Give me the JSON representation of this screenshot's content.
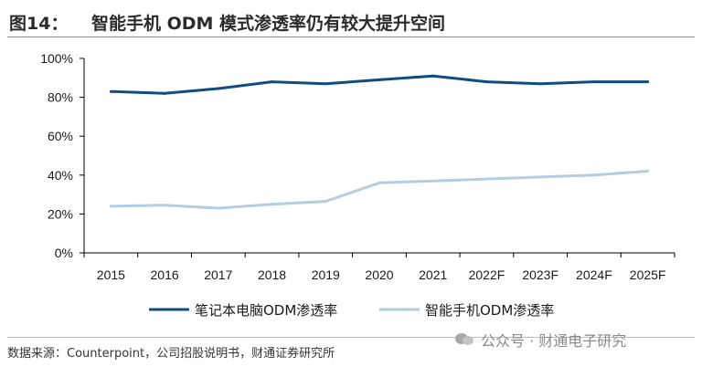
{
  "header": {
    "figure_label": "图14：",
    "title": "智能手机 ODM 模式渗透率仍有较大提升空间"
  },
  "footer": {
    "source": "数据来源：Counterpoint，公司招股说明书，财通证券研究所",
    "watermark": "公众号 · 财通电子研究"
  },
  "colors": {
    "notebook": "#0f4c81",
    "smartphone": "#b3cde3",
    "axis": "#000000"
  },
  "chart_data": {
    "type": "line",
    "title": "智能手机 ODM 模式渗透率仍有较大提升空间",
    "categories": [
      "2015",
      "2016",
      "2017",
      "2018",
      "2019",
      "2020",
      "2021",
      "2022F",
      "2023F",
      "2024F",
      "2025F"
    ],
    "series": [
      {
        "name": "笔记本电脑ODM渗透率",
        "values": [
          83,
          82,
          84.5,
          88,
          87,
          89,
          91,
          88,
          87,
          88,
          88
        ]
      },
      {
        "name": "智能手机ODM渗透率",
        "values": [
          24,
          24.5,
          23,
          25,
          26.5,
          36,
          37,
          38,
          39,
          40,
          42
        ]
      }
    ],
    "yticks": [
      "0%",
      "20%",
      "40%",
      "60%",
      "80%",
      "100%"
    ],
    "ylim": [
      0,
      100
    ],
    "xlabel": "",
    "ylabel": "",
    "grid": false,
    "legend": "bottom"
  }
}
